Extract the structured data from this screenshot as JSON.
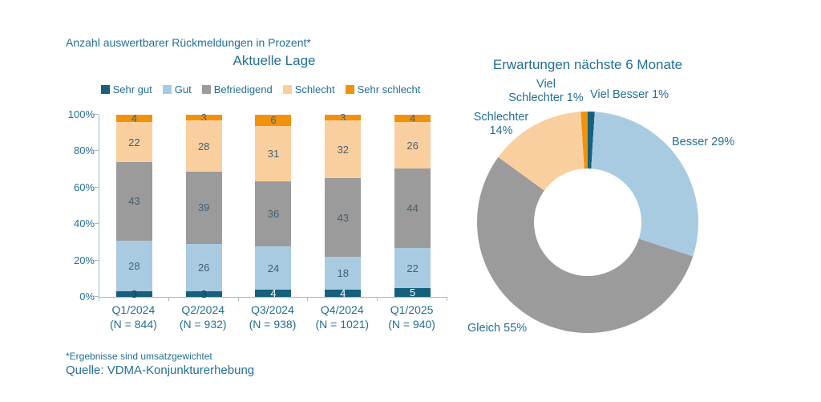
{
  "page": {
    "header_note": "Anzahl auswertbarer Rückmeldungen in Prozent*",
    "footnote": "*Ergebnisse sind umsatzgewichtet",
    "source": "Quelle: VDMA-Konjunkturerhebung"
  },
  "colors": {
    "sehr_gut": "#16607C",
    "gut": "#A9CBE1",
    "befriedigend": "#9B9B9B",
    "schlecht": "#FACF9F",
    "sehr_schlecht": "#F1920D",
    "text_teal": "#246F93",
    "segment_label": "#446070",
    "axis": "#9FBCCB"
  },
  "chart_data": [
    {
      "type": "bar",
      "stacked": true,
      "title": "Aktuelle Lage",
      "categories": [
        "Q1/2024",
        "Q2/2024",
        "Q3/2024",
        "Q4/2024",
        "Q1/2025"
      ],
      "category_sublabels": [
        "(N = 844)",
        "(N = 932)",
        "(N = 938)",
        "(N = 1021)",
        "(N = 940)"
      ],
      "series": [
        {
          "name": "Sehr gut",
          "color": "#16607C",
          "values": [
            3,
            3,
            4,
            4,
            5
          ],
          "label_colors": [
            "#173F52",
            "#173F52",
            "#FFFFFF",
            "#FFFFFF",
            "#FFFFFF"
          ]
        },
        {
          "name": "Gut",
          "color": "#A9CBE1",
          "values": [
            28,
            26,
            24,
            18,
            22
          ]
        },
        {
          "name": "Befriedigend",
          "color": "#9B9B9B",
          "values": [
            43,
            39,
            36,
            43,
            44
          ]
        },
        {
          "name": "Schlecht",
          "color": "#FACF9F",
          "values": [
            22,
            28,
            31,
            32,
            26
          ]
        },
        {
          "name": "Sehr schlecht",
          "color": "#F1920D",
          "values": [
            4,
            3,
            6,
            3,
            4
          ]
        }
      ],
      "ylim": [
        0,
        100
      ],
      "y_ticks": [
        "0%",
        "20%",
        "40%",
        "60%",
        "80%",
        "100%"
      ],
      "legend_position": "top",
      "grid": false
    },
    {
      "type": "pie",
      "donut": true,
      "title": "Erwartungen nächste 6 Monate",
      "slices": [
        {
          "label": "Viel Besser",
          "value": 1,
          "color": "#16607C",
          "display": "Viel Besser 1%"
        },
        {
          "label": "Besser",
          "value": 29,
          "color": "#A9CBE1",
          "display": "Besser 29%"
        },
        {
          "label": "Gleich",
          "value": 55,
          "color": "#9B9B9B",
          "display": "Gleich  55%"
        },
        {
          "label": "Schlechter",
          "value": 14,
          "color": "#FACF9F",
          "display": "Schlechter\n14%"
        },
        {
          "label": "Viel Schlechter",
          "value": 1,
          "color": "#F1920D",
          "display": "Viel\nSchlechter 1%"
        }
      ]
    }
  ]
}
